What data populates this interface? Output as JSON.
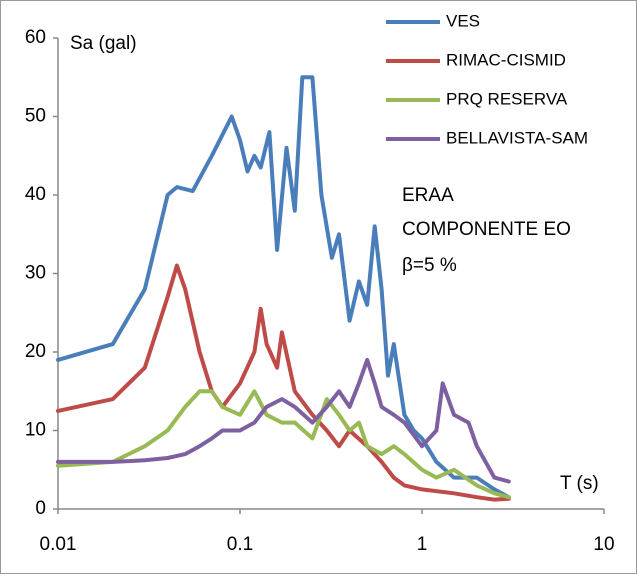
{
  "chart_data": {
    "type": "line",
    "y_label": "Sa (gal)",
    "x_label": "T (s)",
    "annotations": [
      "ERAA",
      "COMPONENTE EO",
      "β=5 %"
    ],
    "xscale": "log",
    "xlim": [
      0.01,
      10
    ],
    "xticks": [
      0.01,
      0.1,
      1,
      10
    ],
    "ylim": [
      0,
      60
    ],
    "yticks": [
      0,
      10,
      20,
      30,
      40,
      50,
      60
    ],
    "grid": false,
    "legend": "top-right",
    "series": [
      {
        "name": "VES",
        "color": "#4a7ebb",
        "x": [
          0.01,
          0.02,
          0.03,
          0.04,
          0.045,
          0.055,
          0.07,
          0.09,
          0.1,
          0.11,
          0.12,
          0.13,
          0.145,
          0.16,
          0.18,
          0.2,
          0.22,
          0.25,
          0.28,
          0.32,
          0.35,
          0.4,
          0.45,
          0.5,
          0.55,
          0.6,
          0.65,
          0.7,
          0.8,
          0.9,
          1,
          1.2,
          1.5,
          2,
          2.5,
          3
        ],
        "values": [
          19,
          21,
          28,
          40,
          41,
          40.5,
          45,
          50,
          47,
          43,
          45,
          43.5,
          48,
          33,
          46,
          38,
          55,
          55,
          40,
          32,
          35,
          24,
          29,
          26,
          36,
          28,
          17,
          21,
          12,
          10,
          9,
          6,
          4,
          4,
          2.5,
          1.5
        ]
      },
      {
        "name": "RIMAC-CISMID",
        "color": "#be4b48",
        "x": [
          0.01,
          0.02,
          0.03,
          0.04,
          0.045,
          0.05,
          0.06,
          0.07,
          0.08,
          0.1,
          0.12,
          0.13,
          0.14,
          0.16,
          0.17,
          0.2,
          0.25,
          0.3,
          0.35,
          0.4,
          0.5,
          0.6,
          0.7,
          0.8,
          1,
          1.5,
          2,
          2.5,
          3
        ],
        "values": [
          12.5,
          14,
          18,
          27,
          31,
          28,
          20,
          15,
          13,
          16,
          20,
          25.5,
          21,
          18,
          22.5,
          15,
          12,
          10,
          8,
          10,
          8,
          6,
          4,
          3,
          2.5,
          2,
          1.5,
          1.2,
          1.3
        ]
      },
      {
        "name": "PRQ RESERVA",
        "color": "#98b954",
        "x": [
          0.01,
          0.02,
          0.03,
          0.04,
          0.05,
          0.06,
          0.07,
          0.08,
          0.1,
          0.12,
          0.14,
          0.17,
          0.2,
          0.25,
          0.3,
          0.35,
          0.4,
          0.45,
          0.5,
          0.6,
          0.7,
          0.8,
          1,
          1.2,
          1.5,
          2,
          2.5,
          3
        ],
        "values": [
          5.5,
          6,
          8,
          10,
          13,
          15,
          15,
          13,
          12,
          15,
          12,
          11,
          11,
          9,
          14,
          12,
          10,
          11,
          8,
          7,
          8,
          7,
          5,
          4,
          5,
          3,
          2,
          1.5
        ]
      },
      {
        "name": "BELLAVISTA-SAM",
        "color": "#7d60a0",
        "x": [
          0.01,
          0.02,
          0.03,
          0.04,
          0.05,
          0.06,
          0.07,
          0.08,
          0.1,
          0.12,
          0.14,
          0.17,
          0.2,
          0.25,
          0.3,
          0.35,
          0.4,
          0.45,
          0.5,
          0.55,
          0.6,
          0.7,
          0.8,
          1,
          1.2,
          1.3,
          1.5,
          1.8,
          2,
          2.5,
          3
        ],
        "values": [
          6,
          6,
          6.2,
          6.5,
          7,
          8,
          9,
          10,
          10,
          11,
          13,
          14,
          13,
          11,
          13,
          15,
          13,
          16,
          19,
          16,
          13,
          12,
          11,
          8,
          10,
          16,
          12,
          11,
          8,
          4,
          3.5
        ]
      }
    ]
  }
}
